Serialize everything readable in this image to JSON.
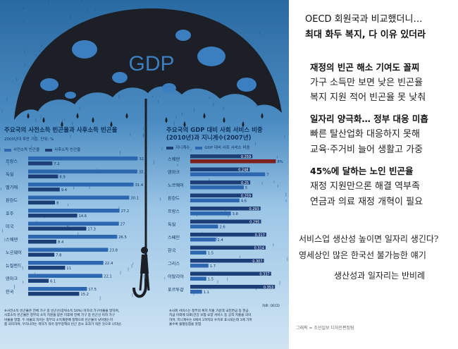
{
  "colors": {
    "bg_top": "#2f6fa5",
    "bg_bottom": "#c9e1f2",
    "umbrella": "#1c1f26",
    "drop": "#1f4f86",
    "prebar": "#2d67b0",
    "postbar": "#1d3f78",
    "gini": "#1d3f78",
    "spend": "#2d67b0",
    "spend_top": "#7d2020"
  },
  "umbrella": {
    "label": "GDP"
  },
  "chart_data": [
    {
      "type": "bar",
      "title": "주요국의 사전소득 빈곤율과 사후소득 빈곤율",
      "subtitle": "2000년대 후반 기준, 단위: %",
      "legend": [
        "사전소득 빈곤율",
        "사후소득 빈곤율"
      ],
      "categories": [
        "프랑스",
        "독일",
        "벨기에",
        "핀란드",
        "호주",
        "미국",
        "스웨덴",
        "노르웨이",
        "뉴질랜드",
        "덴마크",
        "한국"
      ],
      "series": [
        {
          "name": "사전소득 빈곤율",
          "values": [
            32.6,
            32.5,
            31.4,
            30.1,
            27.2,
            27.0,
            26.5,
            23.8,
            22.4,
            22.1,
            17.5
          ]
        },
        {
          "name": "사후소득 빈곤율",
          "values": [
            7.2,
            8.9,
            9.4,
            8.0,
            14.6,
            17.3,
            8.4,
            7.8,
            11.0,
            6.1,
            15.2
          ]
        }
      ],
      "xlim": [
        0,
        34
      ]
    },
    {
      "type": "bar",
      "title": "주요국의 GDP 대비 사회 서비스 비중",
      "title2": "(2010년)과 지니계수(2007년)",
      "legend": [
        "지니계수",
        "GDP 대비 사회 서비스 비중"
      ],
      "categories": [
        "스웨덴",
        "덴마크",
        "노르웨이",
        "핀란드",
        "프랑스",
        "독일",
        "스페인",
        "한국",
        "그리스",
        "이탈리아",
        "포르투갈"
      ],
      "series": [
        {
          "name": "지니계수",
          "values": [
            0.259,
            0.248,
            0.25,
            0.259,
            0.293,
            0.295,
            0.317,
            0.314,
            0.307,
            0.337,
            0.353
          ]
        },
        {
          "name": "GDP 대비 사회 서비스 비중",
          "values": [
            8,
            7,
            5,
            4.6,
            3.8,
            2.6,
            2.4,
            1.5,
            1.7,
            1.5,
            1.1
          ]
        }
      ],
      "gini_labels": [
        "0.259",
        "0.248",
        "0.25",
        "0.259",
        "0.293",
        "0.295",
        "0.317",
        "0.314",
        "0.307",
        "0.337",
        "0.353"
      ],
      "spend_labels": [
        "8%",
        "7",
        "5",
        "4.6",
        "3.8",
        "2.6",
        "2.4",
        "1.5",
        "1.7",
        "1.5",
        "1.1"
      ],
      "gini_lim": [
        0,
        0.37
      ],
      "spend_lim": [
        0,
        8.3
      ]
    }
  ],
  "notes": {
    "left": [
      "※사전소득 빈곤율은 전체 가구 중 빈곤선(중위소득 50%) 이하의 가구비율을 말하며,",
      "사후소득 빈곤율은 정부의 소득 지원을 받은 이후에 전체 가구 중 빈곤선 이하 가구",
      "비율을 말함. 두 비율의 차이는 정부의 소득재분배 정책으로 빈곤율이 낮아졌는지",
      "를 의미하며, 우리나라는 격차가 적어 정부정책의 빈곤 감소 효과가 적은 것으로 나타남."
    ],
    "right": [
      "※사회 서비스는 정부의 복지 지출 가운데 국민연금 등 현금",
      "지급 이외에 의료(건강 보험·요양 서비스 등 공적 지출을 의미",
      "하며, 지니계수는 0에서 1까지의 수치로 표시되는데 1에 가까",
      "울수록 불평등함을 뜻함."
    ],
    "source": "자료: OECD"
  },
  "right_panel": {
    "title1": "OECD 회원국과 비교했더니…",
    "title2": "최대 화두 복지, 다 이유 있더라",
    "sections": [
      {
        "heading": "재정의 빈곤 해소 기여도 꼴찌",
        "lines": [
          "가구 소득만 보면 낮은 빈곤율",
          "복지 지원 적어 빈곤율 못 낮춰"
        ]
      },
      {
        "heading": "일자리 양극화… 정부 대응 미흡",
        "lines": [
          "빠른 탈산업화 대응하지 못해",
          "교육·주거비 늘어 생활고 가중"
        ]
      },
      {
        "heading": "45%에 달하는 노인 빈곤율",
        "lines": [
          "재정 지원만으론 해결 역부족",
          "연금과 의료 재정 개혁이 필요"
        ]
      }
    ],
    "question": [
      "서비스업 생산성 높이면 일자리 생긴다?",
      "영세상인 많은 한국선 불가능한 얘기"
    ],
    "conclusion": "생산성과 일자리는 반비례",
    "credit": "그래픽 = 조선일보 디자인편집팀"
  }
}
